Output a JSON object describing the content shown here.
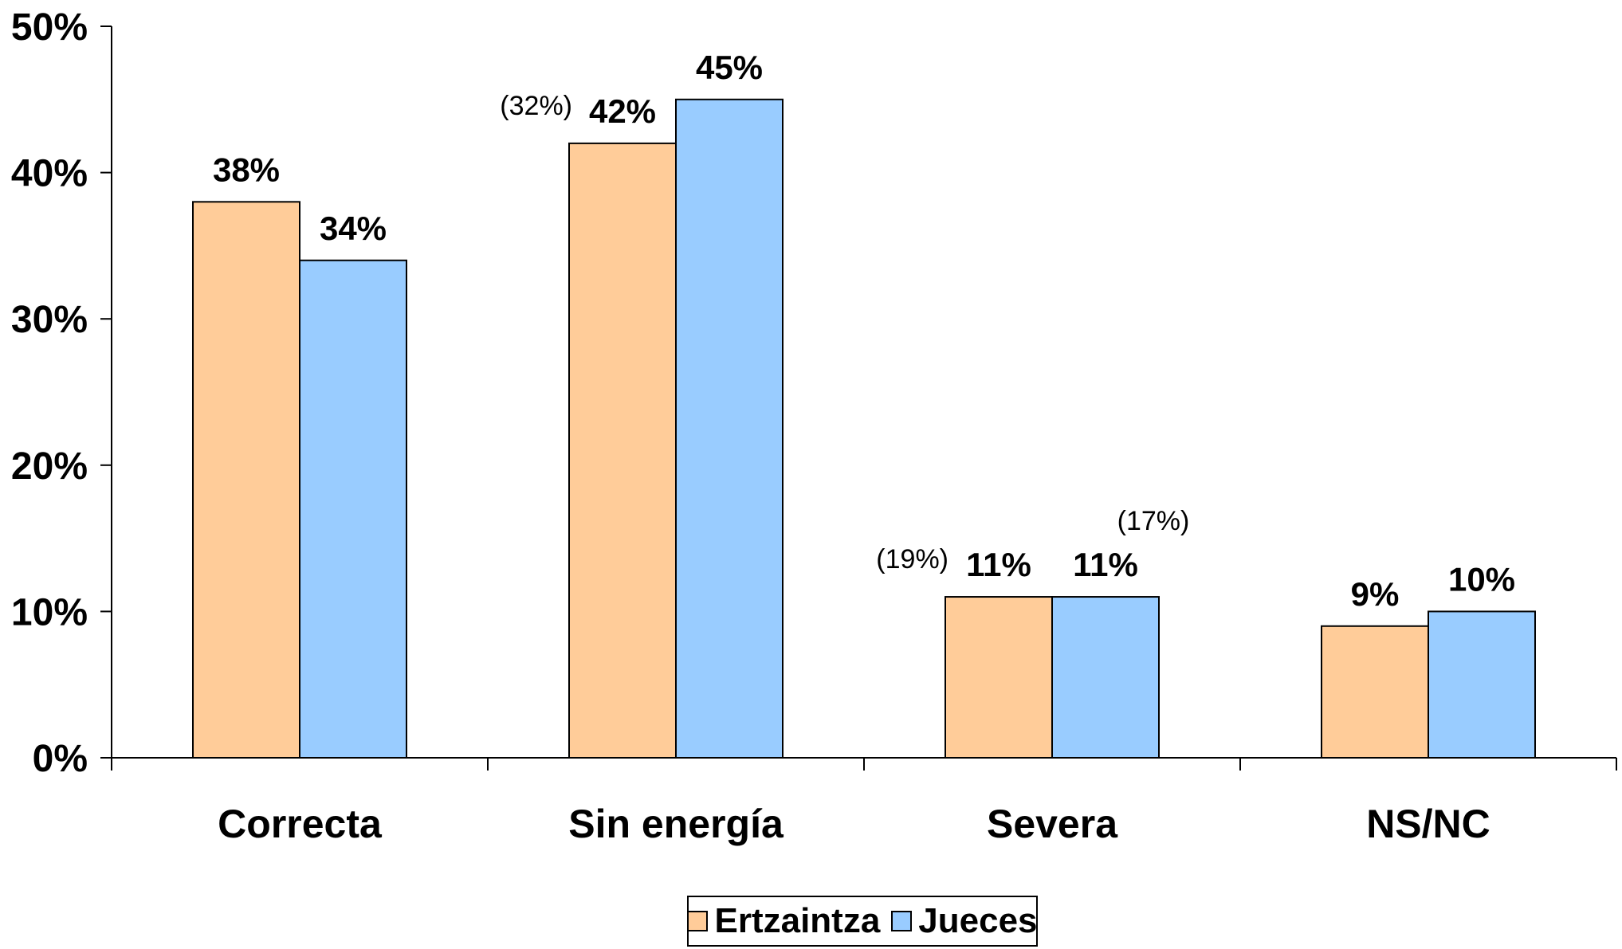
{
  "chart_data": {
    "type": "bar",
    "categories": [
      "Correcta",
      "Sin energía",
      "Severa",
      "NS/NC"
    ],
    "series": [
      {
        "name": "Ertzaintza",
        "color": "#FFCC99",
        "values": [
          38,
          42,
          11,
          9
        ],
        "labels": [
          "38%",
          "42%",
          "11%",
          "9%"
        ]
      },
      {
        "name": "Jueces",
        "color": "#99CCFF",
        "values": [
          34,
          45,
          11,
          10
        ],
        "labels": [
          "34%",
          "45%",
          "11%",
          "10%"
        ]
      }
    ],
    "annotations": [
      {
        "category": "Sin energía",
        "series": "Ertzaintza",
        "text": "(32%)"
      },
      {
        "category": "Severa",
        "series": "Ertzaintza",
        "text": "(19%)"
      },
      {
        "category": "Severa",
        "series": "Jueces",
        "text": "(17%)"
      }
    ],
    "yticks": [
      "0%",
      "10%",
      "20%",
      "30%",
      "40%",
      "50%"
    ],
    "ylim": [
      0,
      50
    ],
    "grid": false,
    "legend_position": "bottom"
  }
}
